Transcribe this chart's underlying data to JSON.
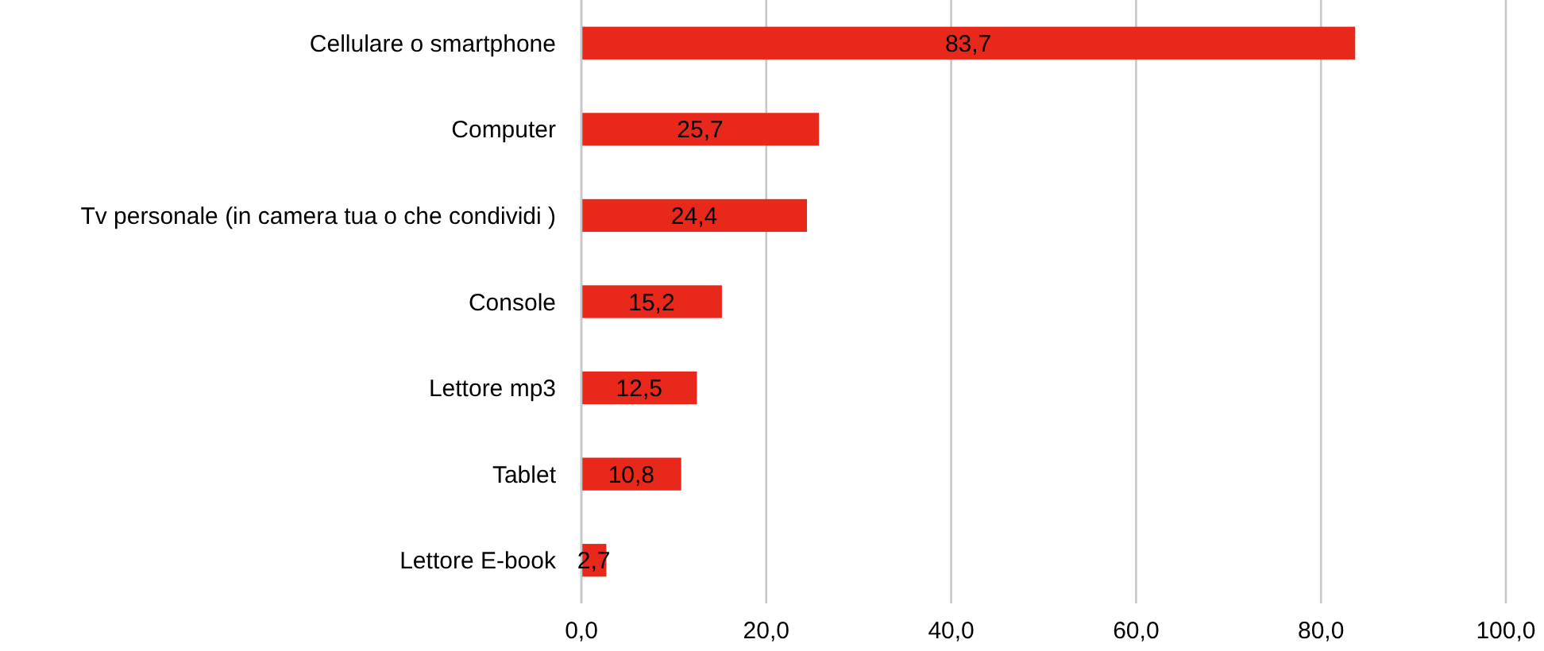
{
  "chart_data": {
    "type": "bar",
    "orientation": "horizontal",
    "categories": [
      "Cellulare o smartphone",
      "Computer",
      "Tv personale (in camera tua o che condividi )",
      "Console",
      "Lettore mp3",
      "Tablet",
      "Lettore E-book"
    ],
    "values": [
      83.7,
      25.7,
      24.4,
      15.2,
      12.5,
      10.8,
      2.7
    ],
    "value_labels": [
      "83,7",
      "25,7",
      "24,4",
      "15,2",
      "12,5",
      "10,8",
      "2,7"
    ],
    "color": "#e8281b",
    "xlim": [
      0,
      100
    ],
    "xticks": [
      {
        "value": 0,
        "label": "0,0"
      },
      {
        "value": 20,
        "label": "20,0"
      },
      {
        "value": 40,
        "label": "40,0"
      },
      {
        "value": 60,
        "label": "60,0"
      },
      {
        "value": 80,
        "label": "80,0"
      },
      {
        "value": 100,
        "label": "100,0"
      }
    ],
    "grid": "x"
  }
}
